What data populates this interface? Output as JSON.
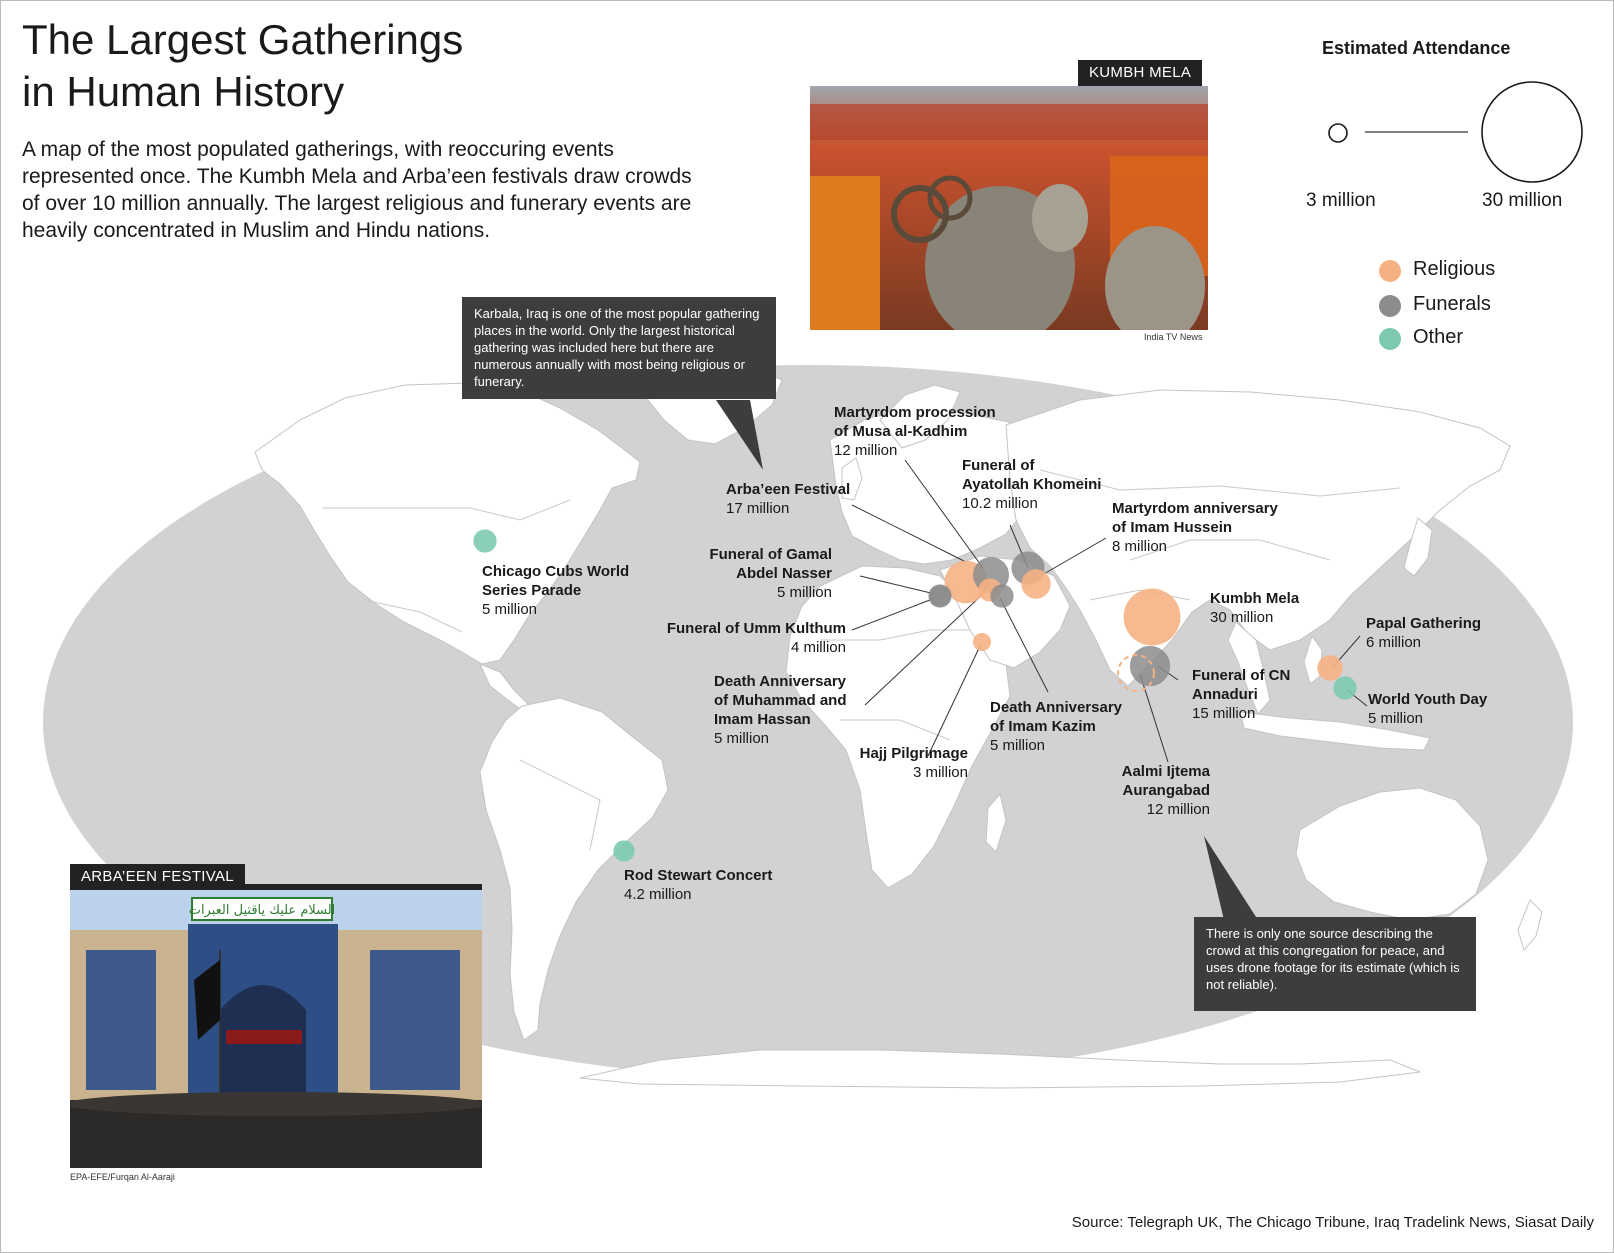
{
  "header": {
    "title_line1": "The Largest Gatherings",
    "title_line2": "in Human History",
    "subtitle": "A map of the most populated gatherings, with reoccuring events represented once. The Kumbh Mela and Arba’een festivals draw crowds of over 10 million annually. The largest religious and funerary events are heavily concentrated in Muslim and Hindu nations."
  },
  "legend": {
    "title": "Estimated Attendance",
    "small_label": "3 million",
    "large_label": "30 million",
    "categories": [
      {
        "label": "Religious",
        "color": "#f6b183"
      },
      {
        "label": "Funerals",
        "color": "#8c8c8c"
      },
      {
        "label": "Other",
        "color": "#7dcab1"
      }
    ]
  },
  "colors": {
    "religious": "#f6b183",
    "funerals": "#8c8c8c",
    "other": "#7dcab1",
    "land": "#ffffff",
    "ocean": "#d2d2d4",
    "note_bg": "#3d3d3d"
  },
  "events": [
    {
      "id": "arbaeen",
      "name": "Arba'een Festival",
      "value": "17 million",
      "category": "religious",
      "attendance_millions": 17,
      "lon": 44.0,
      "lat": 32.6
    },
    {
      "id": "musa",
      "name": "Martyrdom procession of Musa al-Kadhim",
      "value": "12  million",
      "category": "funerals",
      "attendance_millions": 12,
      "lon": 44.3,
      "lat": 33.4
    },
    {
      "id": "khomeini",
      "name": "Funeral of Ayatollah Khomeini",
      "value": "10.2  million",
      "category": "funerals",
      "attendance_millions": 10.2,
      "lon": 51.4,
      "lat": 35.7
    },
    {
      "id": "hussein",
      "name": "Martyrdom anniversary of Imam Hussein",
      "value": "8  million",
      "category": "religious",
      "attendance_millions": 8,
      "lon": 52.5,
      "lat": 29.6
    },
    {
      "id": "nasser",
      "name": "Funeral of Gamal Abdel Nasser",
      "value": "5 million",
      "category": "funerals",
      "attendance_millions": 5,
      "lon": 31.2,
      "lat": 30.0
    },
    {
      "id": "kulthum",
      "name": "Funeral of Umm Kulthum",
      "value": "4 million",
      "category": "funerals",
      "attendance_millions": 4,
      "lon": 31.3,
      "lat": 30.1
    },
    {
      "id": "muhammad",
      "name": "Death Anniversary of Muhammad and Imam Hassan",
      "value": "5 million",
      "category": "religious",
      "attendance_millions": 5,
      "lon": 43.0,
      "lat": 30.0
    },
    {
      "id": "kazim",
      "name": "Death Anniversary of Imam Kazim",
      "value": "5 million",
      "category": "funerals",
      "attendance_millions": 5,
      "lon": 45.5,
      "lat": 30.5
    },
    {
      "id": "hajj",
      "name": "Hajj Pilgrimage",
      "value": "3 million",
      "category": "religious",
      "attendance_millions": 3,
      "lon": 39.8,
      "lat": 21.4
    },
    {
      "id": "kumbh",
      "name": "Kumbh Mela",
      "value": "30 million",
      "category": "religious",
      "attendance_millions": 30,
      "lon": 81.0,
      "lat": 25.4
    },
    {
      "id": "annaduri",
      "name": "Funeral of CN Annaduri",
      "value": "15 million",
      "category": "funerals",
      "attendance_millions": 15,
      "lon": 80.3,
      "lat": 13.1
    },
    {
      "id": "aalmi",
      "name": "Aalmi Ijtema Aurangabad",
      "value": "12 million",
      "category": "religious",
      "attendance_millions": 12,
      "lon": 75.3,
      "lat": 13.5
    },
    {
      "id": "papal",
      "name": "Papal Gathering",
      "value": "6 million",
      "category": "religious",
      "attendance_millions": 6,
      "lon": 121.0,
      "lat": 14.6
    },
    {
      "id": "wyd",
      "name": "World Youth Day",
      "value": "5 million",
      "category": "other",
      "attendance_millions": 5,
      "lon": 122.6,
      "lat": 10.7
    },
    {
      "id": "cubs",
      "name": "Chicago Cubs World Series Parade",
      "value": "5 million",
      "category": "other",
      "attendance_millions": 5,
      "lon": -87.6,
      "lat": 41.9
    },
    {
      "id": "rod",
      "name": "Rod Stewart Concert",
      "value": "4.2 million",
      "category": "other",
      "attendance_millions": 4.2,
      "lon": -43.2,
      "lat": -22.9
    }
  ],
  "labels": {
    "musa": {
      "l1": "Martyrdom procession",
      "l2": "of Musa al-Kadhim",
      "v": "12  million"
    },
    "khomeini": {
      "l1": "Funeral of",
      "l2": "Ayatollah Khomeini",
      "v": "10.2  million"
    },
    "arbaeen": {
      "l1": "Arba’een Festival",
      "v": "17 million"
    },
    "hussein": {
      "l1": "Martyrdom anniversary",
      "l2": "of Imam Hussein",
      "v": "8  million"
    },
    "nasser": {
      "l1": "Funeral of Gamal",
      "l2": "Abdel Nasser",
      "v": "5 million"
    },
    "kulthum": {
      "l1": "Funeral of Umm Kulthum",
      "v": "4 million"
    },
    "muhammad": {
      "l1": "Death Anniversary",
      "l2": "of Muhammad and",
      "l3": "Imam Hassan",
      "v": "5 million"
    },
    "kazim": {
      "l1": "Death Anniversary",
      "l2": "of Imam Kazim",
      "v": "5 million"
    },
    "hajj": {
      "l1": "Hajj Pilgrimage",
      "v": "3 million"
    },
    "kumbh": {
      "l1": "Kumbh Mela",
      "v": "30 million"
    },
    "annaduri": {
      "l1": "Funeral of CN",
      "l2": "Annaduri",
      "v": "15 million"
    },
    "aalmi": {
      "l1": "Aalmi Ijtema",
      "l2": "Aurangabad",
      "v": "12 million"
    },
    "papal": {
      "l1": "Papal Gathering",
      "v": "6 million"
    },
    "wyd": {
      "l1": "World Youth Day",
      "v": "5 million"
    },
    "cubs": {
      "l1": "Chicago Cubs World",
      "l2": "Series Parade",
      "v": "5 million"
    },
    "rod": {
      "l1": "Rod Stewart Concert",
      "v": "4.2 million"
    }
  },
  "notes": {
    "karbala": "Karbala, Iraq is one of the most popular gathering places in the world. Only the largest historical gathering was included here but there are numerous annually with most being religious or funerary.",
    "aalmi": "There is only one source describing the crowd at this congregation for peace, and uses drone footage for its estimate (which is not reliable)."
  },
  "photos": {
    "kumbh": {
      "tag": "KUMBH MELA",
      "credit": "India TV News"
    },
    "arbaeen": {
      "tag": "ARBA’EEN FESTIVAL",
      "credit": "EPA-EFE/Furqan Al-Aaraji",
      "sign_text": "السلام عليك ياقتيل العبرات"
    }
  },
  "source": "Source: Telegraph UK, The Chicago Tribune, Iraq Tradelink News, Siasat Daily"
}
